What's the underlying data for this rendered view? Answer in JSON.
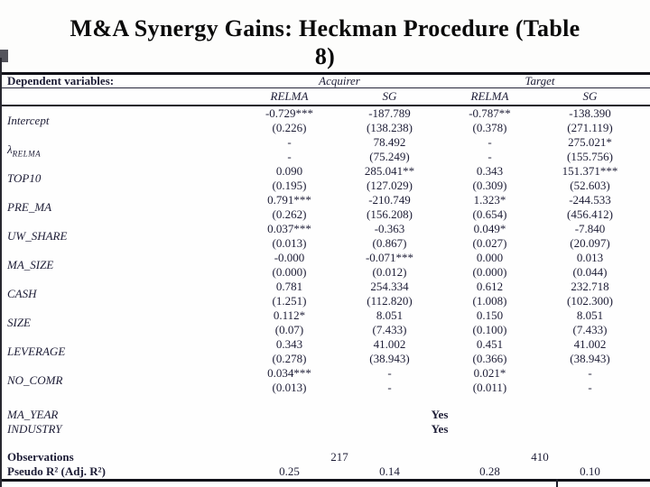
{
  "slide": {
    "title_line1": "M&A Synergy Gains: Heckman Procedure (Table",
    "title_line2": "8)"
  },
  "colors": {
    "ink": "#1d1d36",
    "rule": "#101018",
    "title": "#0a0a0a",
    "background": "#fdfdfc"
  },
  "table": {
    "header": {
      "dependent_label": "Dependent variables:",
      "group1": "Acquirer",
      "group2": "Target",
      "col1": "RELMA",
      "col2": "SG",
      "col3": "RELMA",
      "col4": "SG"
    },
    "rows": [
      {
        "label": "Intercept",
        "c1e": "-0.729***",
        "c1s": "(0.226)",
        "c2e": "-187.789",
        "c2s": "(138.238)",
        "c3e": "-0.787**",
        "c3s": "(0.378)",
        "c4e": "-138.390",
        "c4s": "(271.119)"
      },
      {
        "label": "λ",
        "label_sub": "RELMA",
        "c1e": "-",
        "c1s": "-",
        "c2e": "78.492",
        "c2s": "(75.249)",
        "c3e": "-",
        "c3s": "-",
        "c4e": "275.021*",
        "c4s": "(155.756)"
      },
      {
        "label": "TOP10",
        "c1e": "0.090",
        "c1s": "(0.195)",
        "c2e": "285.041**",
        "c2s": "(127.029)",
        "c3e": "0.343",
        "c3s": "(0.309)",
        "c4e": "151.371***",
        "c4s": "(52.603)"
      },
      {
        "label": "PRE_MA",
        "c1e": "0.791***",
        "c1s": "(0.262)",
        "c2e": "-210.749",
        "c2s": "(156.208)",
        "c3e": "1.323*",
        "c3s": "(0.654)",
        "c4e": "-244.533",
        "c4s": "(456.412)"
      },
      {
        "label": "UW_SHARE",
        "c1e": "0.037***",
        "c1s": "(0.013)",
        "c2e": "-0.363",
        "c2s": "(0.867)",
        "c3e": "0.049*",
        "c3s": "(0.027)",
        "c4e": "-7.840",
        "c4s": "(20.097)"
      },
      {
        "label": "MA_SIZE",
        "c1e": "-0.000",
        "c1s": "(0.000)",
        "c2e": "-0.071***",
        "c2s": "(0.012)",
        "c3e": "0.000",
        "c3s": "(0.000)",
        "c4e": "0.013",
        "c4s": "(0.044)"
      },
      {
        "label": "CASH",
        "c1e": "0.781",
        "c1s": "(1.251)",
        "c2e": "254.334",
        "c2s": "(112.820)",
        "c3e": "0.612",
        "c3s": "(1.008)",
        "c4e": "232.718",
        "c4s": "(102.300)"
      },
      {
        "label": "SIZE",
        "c1e": "0.112*",
        "c1s": "(0.07)",
        "c2e": "8.051",
        "c2s": "(7.433)",
        "c3e": "0.150",
        "c3s": "(0.100)",
        "c4e": "8.051",
        "c4s": "(7.433)"
      },
      {
        "label": "LEVERAGE",
        "c1e": "0.343",
        "c1s": "(0.278)",
        "c2e": "41.002",
        "c2s": "(38.943)",
        "c3e": "0.451",
        "c3s": "(0.366)",
        "c4e": "41.002",
        "c4s": "(38.943)"
      },
      {
        "label": "NO_COMR",
        "c1e": "0.034***",
        "c1s": "(0.013)",
        "c2e": "-",
        "c2s": "-",
        "c3e": "0.021*",
        "c3s": "(0.011)",
        "c4e": "-",
        "c4s": "-"
      }
    ],
    "fixed_effects": [
      {
        "label": "MA_YEAR",
        "value": "Yes"
      },
      {
        "label": "INDUSTRY",
        "value": "Yes"
      }
    ],
    "stats": {
      "observations_label": "Observations",
      "obs_acquirer": "217",
      "obs_target": "410",
      "pseudo_label": "Pseudo R² (Adj. R²)",
      "p1": "0.25",
      "p2": "0.14",
      "p3": "0.28",
      "p4": "0.10"
    }
  }
}
